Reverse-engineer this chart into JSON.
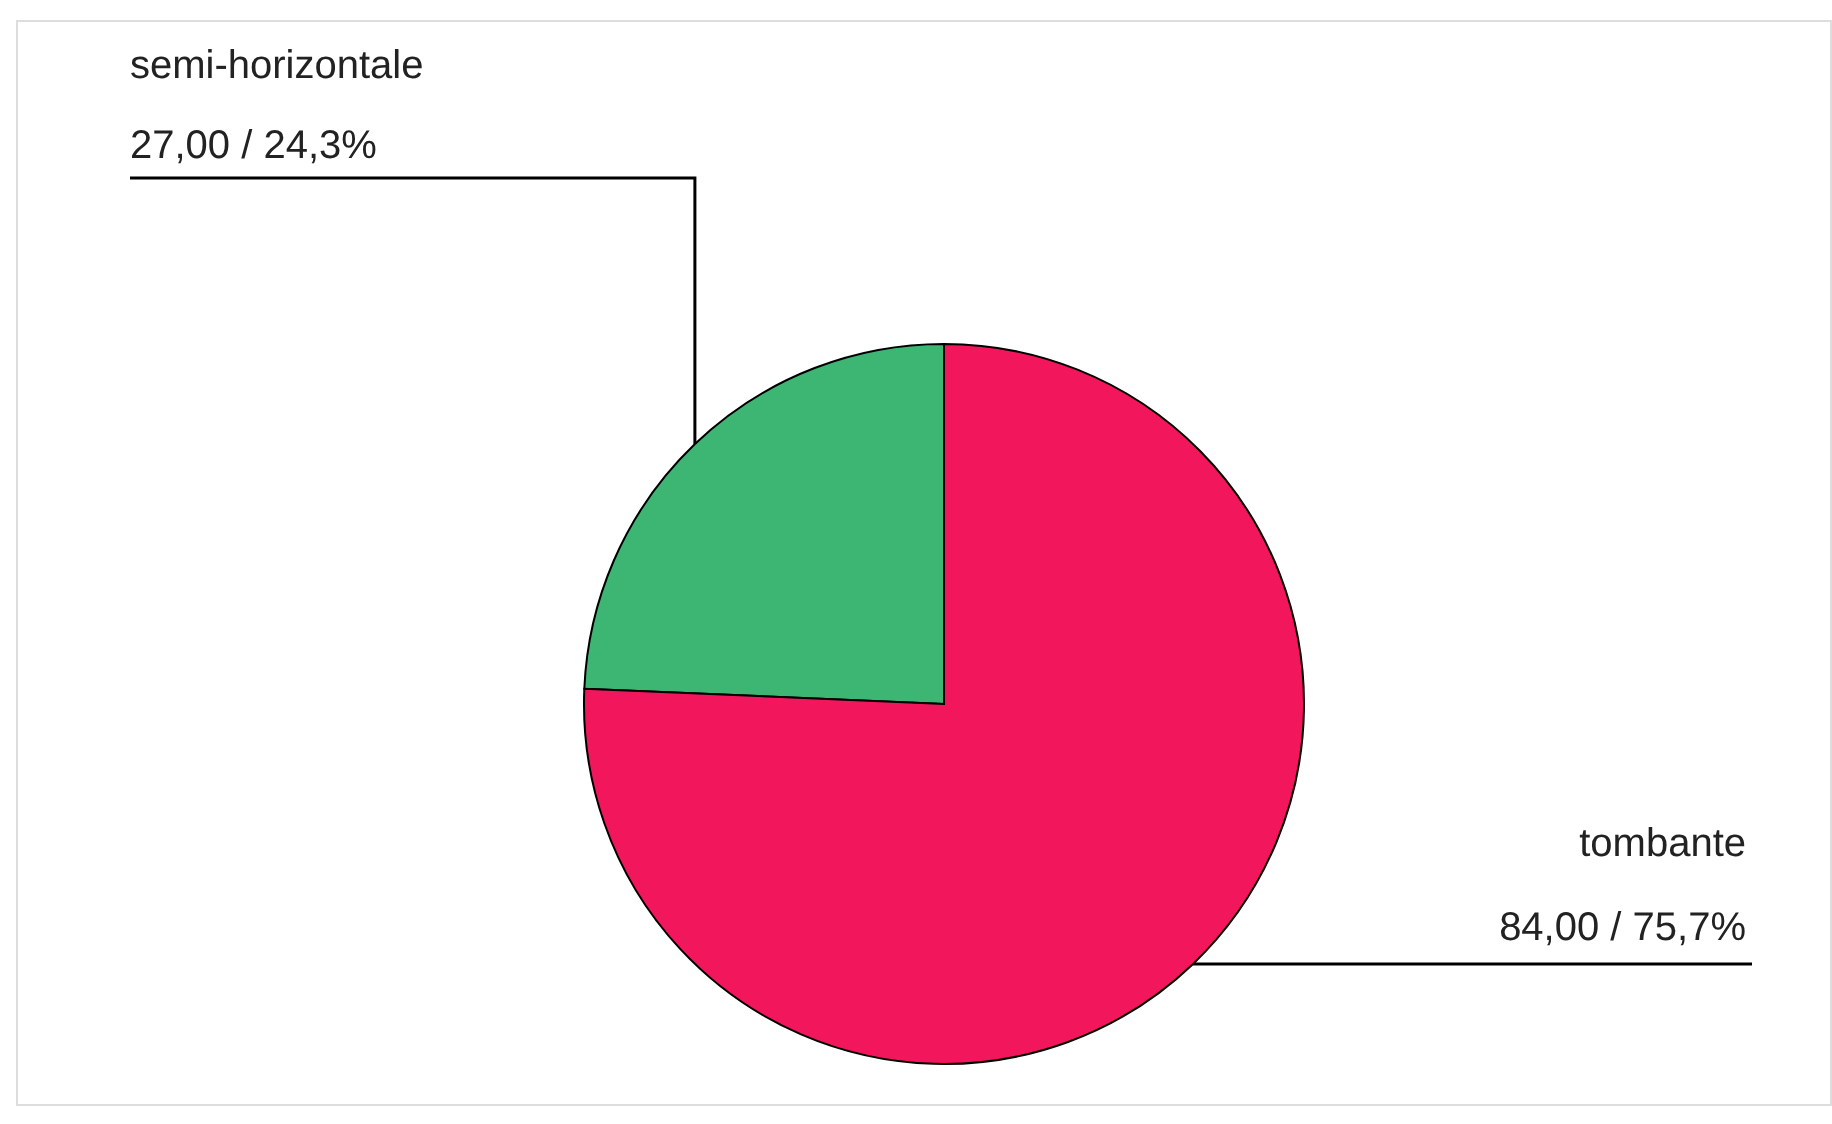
{
  "chart_data": {
    "type": "pie",
    "categories": [
      "semi-horizontale",
      "tombante"
    ],
    "values": [
      27,
      84
    ],
    "colors": [
      "#3db573",
      "#f2165c"
    ],
    "value_labels": [
      "27,00 / 24,3%",
      "84,00 / 75,7%"
    ]
  }
}
